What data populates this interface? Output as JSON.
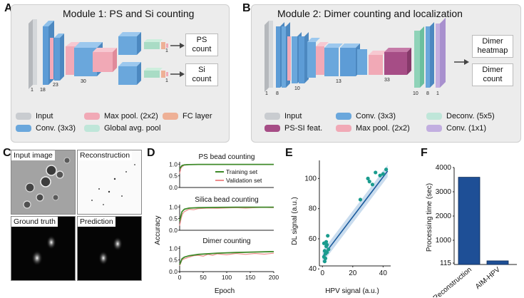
{
  "panel_labels": {
    "a": "A",
    "b": "B",
    "c": "C",
    "d": "D",
    "e": "E",
    "f": "F"
  },
  "module1": {
    "title": "Module 1: PS and Si counting",
    "outputs": [
      "PS\ncount",
      "Si\ncount"
    ],
    "layer_numbers": [
      "1",
      "18",
      "23",
      "30",
      "1",
      "1"
    ],
    "legend": [
      {
        "label": "Input",
        "color": "#c9ccd0"
      },
      {
        "label": "Max pool. (2x2)",
        "color": "#f1a9b6"
      },
      {
        "label": "FC layer",
        "color": "#eeb096"
      },
      {
        "label": "Conv. (3x3)",
        "color": "#6aa7dc"
      },
      {
        "label": "Global avg. pool",
        "color": "#bfe6d9"
      }
    ]
  },
  "module2": {
    "title": "Module 2: Dimer counting and localization",
    "outputs": [
      "Dimer\nheatmap",
      "Dimer\ncount"
    ],
    "layer_numbers": [
      "1",
      "8",
      "10",
      "13",
      "33",
      "10",
      "8",
      "1"
    ],
    "legend": [
      {
        "label": "Input",
        "color": "#c9ccd0"
      },
      {
        "label": "Conv. (3x3)",
        "color": "#6aa7dc"
      },
      {
        "label": "Deconv. (5x5)",
        "color": "#bfe6d9"
      },
      {
        "label": "PS-SI feat.",
        "color": "#a64d86"
      },
      {
        "label": "Max pool. (2x2)",
        "color": "#f1a9b6"
      },
      {
        "label": "Conv. (1x1)",
        "color": "#c2aee0"
      }
    ]
  },
  "panel_c": {
    "tiles": [
      "Input image",
      "Reconstruction",
      "Ground truth",
      "Prediction"
    ]
  },
  "panel_d": {
    "y_axis_label": "Accuracy",
    "x_axis_label": "Epoch",
    "legend": {
      "training": "Training set",
      "validation": "Validation set"
    },
    "colors": {
      "training": "#3f8a2a",
      "validation": "#ee8d8d"
    },
    "chart_data": [
      {
        "type": "line",
        "title": "PS bead counting",
        "x_ticks": [
          "0",
          "50",
          "100",
          "150",
          "200"
        ],
        "y_ticks": [
          "0.0",
          "0.5",
          "1.0"
        ],
        "xlim": [
          0,
          200
        ],
        "ylim": [
          0,
          1.1
        ],
        "series": [
          {
            "name": "Training set",
            "x": [
              0,
              5,
              10,
              20,
              40,
              80,
              120,
              160,
              200
            ],
            "y": [
              0.8,
              0.94,
              0.97,
              0.98,
              0.99,
              0.99,
              0.99,
              0.99,
              0.99
            ]
          },
          {
            "name": "Validation set",
            "x": [
              0,
              3,
              6,
              10,
              15,
              20,
              40,
              80,
              120,
              160,
              200
            ],
            "y": [
              0.6,
              0.85,
              0.9,
              0.97,
              0.98,
              0.98,
              0.99,
              0.98,
              0.99,
              0.99,
              0.99
            ]
          }
        ]
      },
      {
        "type": "line",
        "title": "Silica bead counting",
        "x_ticks": [
          "0",
          "50",
          "100",
          "150",
          "200"
        ],
        "y_ticks": [
          "0.0",
          "0.5",
          "1.0"
        ],
        "xlim": [
          0,
          200
        ],
        "ylim": [
          0,
          1.1
        ],
        "series": [
          {
            "name": "Training set",
            "x": [
              0,
              5,
              10,
              20,
              40,
              80,
              120,
              160,
              200
            ],
            "y": [
              0.4,
              0.8,
              0.9,
              0.95,
              0.97,
              0.98,
              0.99,
              0.99,
              0.99
            ]
          },
          {
            "name": "Validation set",
            "x": [
              0,
              3,
              6,
              10,
              15,
              20,
              30,
              40,
              60,
              80,
              100,
              120,
              140,
              160,
              180,
              200
            ],
            "y": [
              0.2,
              0.5,
              0.7,
              0.8,
              0.85,
              0.9,
              0.88,
              0.93,
              0.95,
              0.94,
              0.96,
              0.97,
              0.95,
              0.97,
              0.98,
              0.97
            ]
          }
        ]
      },
      {
        "type": "line",
        "title": "Dimer counting",
        "x_ticks": [
          "0",
          "50",
          "100",
          "150",
          "200"
        ],
        "y_ticks": [
          "0.0",
          "0.5",
          "1.0"
        ],
        "xlim": [
          0,
          200
        ],
        "ylim": [
          0,
          1.1
        ],
        "series": [
          {
            "name": "Training set",
            "x": [
              0,
              5,
              10,
              20,
              40,
              80,
              120,
              160,
              200
            ],
            "y": [
              0.3,
              0.55,
              0.62,
              0.68,
              0.74,
              0.79,
              0.82,
              0.84,
              0.86
            ]
          },
          {
            "name": "Validation set",
            "x": [
              0,
              5,
              10,
              20,
              30,
              40,
              50,
              60,
              70,
              80,
              100,
              120,
              140,
              160,
              180,
              200
            ],
            "y": [
              0.25,
              0.5,
              0.55,
              0.62,
              0.68,
              0.7,
              0.66,
              0.74,
              0.7,
              0.76,
              0.72,
              0.78,
              0.74,
              0.78,
              0.75,
              0.79
            ]
          }
        ]
      }
    ]
  },
  "panel_e": {
    "chart_data": {
      "type": "scatter",
      "xlabel": "HPV signal (a.u.)",
      "ylabel": "DL signal (a.u.)",
      "xlim": [
        -2,
        45
      ],
      "ylim": [
        42,
        112
      ],
      "x_ticks": [
        "0",
        "20",
        "40"
      ],
      "y_ticks": [
        "40",
        "60",
        "80",
        "100"
      ],
      "points_x": [
        1,
        1.5,
        2,
        2.5,
        3,
        1,
        2,
        3,
        4,
        1.5,
        2.5,
        3.5,
        25,
        30,
        31,
        33,
        35,
        38,
        40,
        42
      ],
      "points_y": [
        48,
        52,
        50,
        55,
        56,
        57,
        47,
        51,
        53,
        45,
        58,
        62,
        86,
        100,
        98,
        96,
        104,
        102,
        103,
        106
      ],
      "fit": {
        "x": [
          0,
          43
        ],
        "y": [
          48,
          105
        ]
      },
      "color": "#1a9c8e",
      "line_color": "#1a5a9c"
    }
  },
  "panel_f": {
    "chart_data": {
      "type": "bar",
      "ylabel": "Processing time (sec)",
      "categories": [
        "Reconstruction",
        "AIM-HPV"
      ],
      "values": [
        3600,
        150
      ],
      "y_ticks": [
        "115",
        "1000",
        "2000",
        "3000",
        "4000"
      ],
      "ylim": [
        0,
        4000
      ],
      "color": "#1e4f96"
    }
  }
}
